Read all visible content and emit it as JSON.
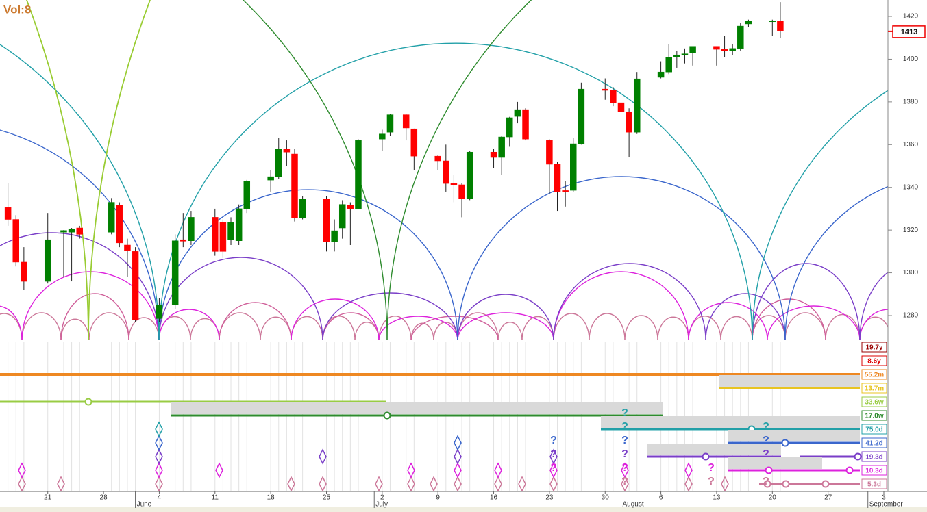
{
  "volume_label": "Vol:8",
  "question_mark": "?",
  "chart_data": {
    "type": "candlestick",
    "xlim": [
      "May 15",
      "Sep 3"
    ],
    "ylim": [
      1267.5,
      1427.7
    ],
    "yticks": [
      1280,
      1300,
      1320,
      1340,
      1360,
      1380,
      1400,
      1420
    ],
    "current_price": 1413,
    "up_color": "#008000",
    "down_color": "#ff0000",
    "xticks": [
      {
        "value": "May 21",
        "label": "21"
      },
      {
        "value": "May 28",
        "label": "28"
      },
      {
        "value": "Jun 4",
        "label": "4"
      },
      {
        "value": "Jun 11",
        "label": "11"
      },
      {
        "value": "Jun 18",
        "label": "18"
      },
      {
        "value": "Jun 25",
        "label": "25"
      },
      {
        "value": "Jul 2",
        "label": "2"
      },
      {
        "value": "Jul 9",
        "label": "9"
      },
      {
        "value": "Jul 16",
        "label": "16"
      },
      {
        "value": "Jul 23",
        "label": "23"
      },
      {
        "value": "Jul 30",
        "label": "30"
      },
      {
        "value": "Aug 6",
        "label": "6"
      },
      {
        "value": "Aug 13",
        "label": "13"
      },
      {
        "value": "Aug 20",
        "label": "20"
      },
      {
        "value": "Aug 27",
        "label": "27"
      },
      {
        "value": "Sep 3",
        "label": "3"
      }
    ],
    "month_ticks": [
      {
        "value": "Jun 1",
        "label": "June"
      },
      {
        "value": "Jul 1",
        "label": "July"
      },
      {
        "value": "Aug 1",
        "label": "August"
      },
      {
        "value": "Sep 1",
        "label": "September"
      }
    ],
    "x": [
      "May 16",
      "May 17",
      "May 18",
      "May 21",
      "May 23",
      "May 24",
      "May 25",
      "May 29",
      "May 30",
      "May 31",
      "Jun 1",
      "Jun 4",
      "Jun 6",
      "Jun 7",
      "Jun 8",
      "Jun 11",
      "Jun 12",
      "Jun 13",
      "Jun 14",
      "Jun 15",
      "Jun 18",
      "Jun 19",
      "Jun 20",
      "Jun 21",
      "Jun 22",
      "Jun 25",
      "Jun 26",
      "Jun 27",
      "Jun 28",
      "Jun 29",
      "Jul 2",
      "Jul 3",
      "Jul 5",
      "Jul 6",
      "Jul 9",
      "Jul 10",
      "Jul 11",
      "Jul 12",
      "Jul 13",
      "Jul 16",
      "Jul 17",
      "Jul 18",
      "Jul 19",
      "Jul 20",
      "Jul 23",
      "Jul 24",
      "Jul 25",
      "Jul 26",
      "Jul 27",
      "Jul 30",
      "Jul 31",
      "Aug 1",
      "Aug 2",
      "Aug 3",
      "Aug 6",
      "Aug 7",
      "Aug 8",
      "Aug 9",
      "Aug 10",
      "Aug 13",
      "Aug 14",
      "Aug 15",
      "Aug 16",
      "Aug 17",
      "Aug 20",
      "Aug 21"
    ],
    "open": [
      1330.6,
      1325,
      1305,
      1296,
      1319,
      1319,
      1321,
      1319,
      1331.5,
      1313,
      1310,
      1278.6,
      1285,
      1315.5,
      1315,
      1326,
      1323.5,
      1315.5,
      1315,
      1330,
      1343.4,
      1345,
      1358,
      1355.6,
      1325.8,
      1334.7,
      1314.5,
      1321,
      1331.5,
      1330,
      1362.6,
      1365.8,
      1374,
      1367.4,
      1354.6,
      1352.4,
      1341.8,
      1341.2,
      1334.7,
      1356.5,
      1354,
      1363.6,
      1373.2,
      1376.4,
      1362,
      1350.8,
      1338.5,
      1338.6,
      1360.4,
      1386,
      1385.4,
      1379.6,
      1375.4,
      1365.8,
      1391.5,
      1394,
      1401,
      1402,
      1403,
      1406,
      1404.6,
      1404,
      1405,
      1416.5,
      1417.8,
      1418
    ],
    "high": [
      1342,
      1327,
      1312,
      1328,
      1320,
      1321,
      1322,
      1335,
      1333,
      1316,
      1312,
      1288,
      1318,
      1328,
      1329,
      1330,
      1325,
      1326,
      1332,
      1343.5,
      1348,
      1363,
      1362,
      1358,
      1336,
      1336,
      1325,
      1334,
      1333,
      1362.5,
      1367,
      1374.5,
      1374.2,
      1367.5,
      1355,
      1360,
      1346,
      1342,
      1357,
      1358,
      1364,
      1373,
      1380,
      1377,
      1362.5,
      1352,
      1343,
      1363,
      1389,
      1391,
      1387,
      1385,
      1377,
      1394,
      1399,
      1407,
      1404,
      1405,
      1406,
      1406,
      1411,
      1407,
      1417,
      1418.5,
      1418.5,
      1426.7
    ],
    "low": [
      1322,
      1303,
      1292,
      1295,
      1298,
      1296,
      1316,
      1318,
      1312,
      1298,
      1277,
      1277,
      1283,
      1312,
      1313,
      1308,
      1307,
      1313,
      1313,
      1328,
      1338,
      1344,
      1350,
      1324,
      1325,
      1310,
      1310,
      1316,
      1313,
      1330,
      1357,
      1364,
      1362,
      1348,
      1348,
      1338,
      1333,
      1326,
      1334,
      1349,
      1346,
      1359,
      1370,
      1362,
      1337,
      1329,
      1331,
      1338,
      1360,
      1381,
      1378,
      1372,
      1354,
      1365,
      1391,
      1393,
      1396,
      1398,
      1397,
      1397,
      1401,
      1402,
      1404,
      1415,
      1411,
      1410
    ],
    "close": [
      1325,
      1305,
      1296,
      1315.5,
      1319.8,
      1320.4,
      1318,
      1333,
      1314,
      1310.5,
      1278,
      1285,
      1315,
      1314.8,
      1326,
      1310,
      1310,
      1323.5,
      1330,
      1343,
      1345,
      1358,
      1356.5,
      1325.8,
      1334.7,
      1314.5,
      1319.7,
      1332,
      1330,
      1362,
      1365,
      1374,
      1367.8,
      1354.6,
      1352.4,
      1341.8,
      1341.2,
      1334.7,
      1356.5,
      1354,
      1363.6,
      1372.6,
      1376.4,
      1362.6,
      1350.8,
      1338,
      1338,
      1360.4,
      1386,
      1385.4,
      1379.6,
      1375.4,
      1365.8,
      1390.8,
      1394,
      1401,
      1402,
      1402.5,
      1406,
      1404.6,
      1403.9,
      1405,
      1415.5,
      1418,
      1418,
      1413.3
    ],
    "cycles": [
      {
        "label": "19.7y",
        "color": "#990000"
      },
      {
        "label": "8.6y",
        "color": "#dd0000"
      },
      {
        "label": "55.2m",
        "color": "#ee8822"
      },
      {
        "label": "13.7m",
        "color": "#e8c420"
      },
      {
        "label": "33.6w",
        "color": "#99cc44"
      },
      {
        "label": "17.0w",
        "color": "#2e8b2e"
      },
      {
        "label": "75.0d",
        "color": "#22a0a8"
      },
      {
        "label": "41.2d",
        "color": "#3a66cc"
      },
      {
        "label": "19.3d",
        "color": "#7a3ec8"
      },
      {
        "label": "10.3d",
        "color": "#dd22dd"
      },
      {
        "label": "5.3d",
        "color": "#cc7799"
      }
    ]
  }
}
